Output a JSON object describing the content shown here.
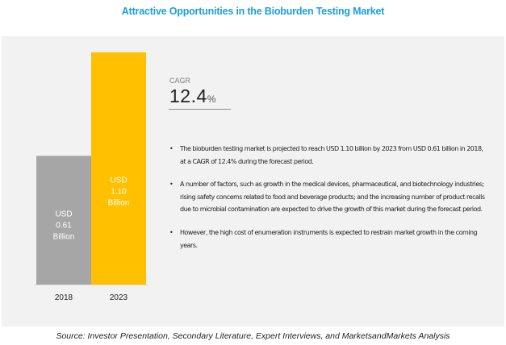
{
  "title": "Attractive Opportunities in the Bioburden Testing Market",
  "cagr": {
    "label": "CAGR",
    "value": "12.4",
    "unit": "%"
  },
  "bullets": [
    "The bioburden testing market is projected to reach USD 1.10 billion by 2023 from USD 0.61 billion in 2018, at a CAGR of 12.4% during the forecast period.",
    "A number of factors, such as growth in the medical devices, pharmaceutical, and biotechnology industries; rising safety concerns related to food and beverage products; and the increasing number of product recalls due to microbial contamination are expected to drive the growth of this market during the forecast period.",
    "However, the high cost of enumeration instruments is expected to restrain market growth in the coming years."
  ],
  "source": "Source: Investor Presentation, Secondary Literature, Expert Interviews, and MarketsandMarkets Analysis",
  "chart_data": {
    "type": "bar",
    "categories": [
      "2018",
      "2023"
    ],
    "values": [
      0.61,
      1.1
    ],
    "bar_labels": [
      [
        "USD",
        "0.61",
        "Billion"
      ],
      [
        "USD",
        "1.10",
        "Billion"
      ]
    ],
    "colors": [
      "#a6a6a6",
      "#ffc000"
    ],
    "ylim": [
      0,
      1.1
    ],
    "grid": false,
    "legend": "none"
  }
}
